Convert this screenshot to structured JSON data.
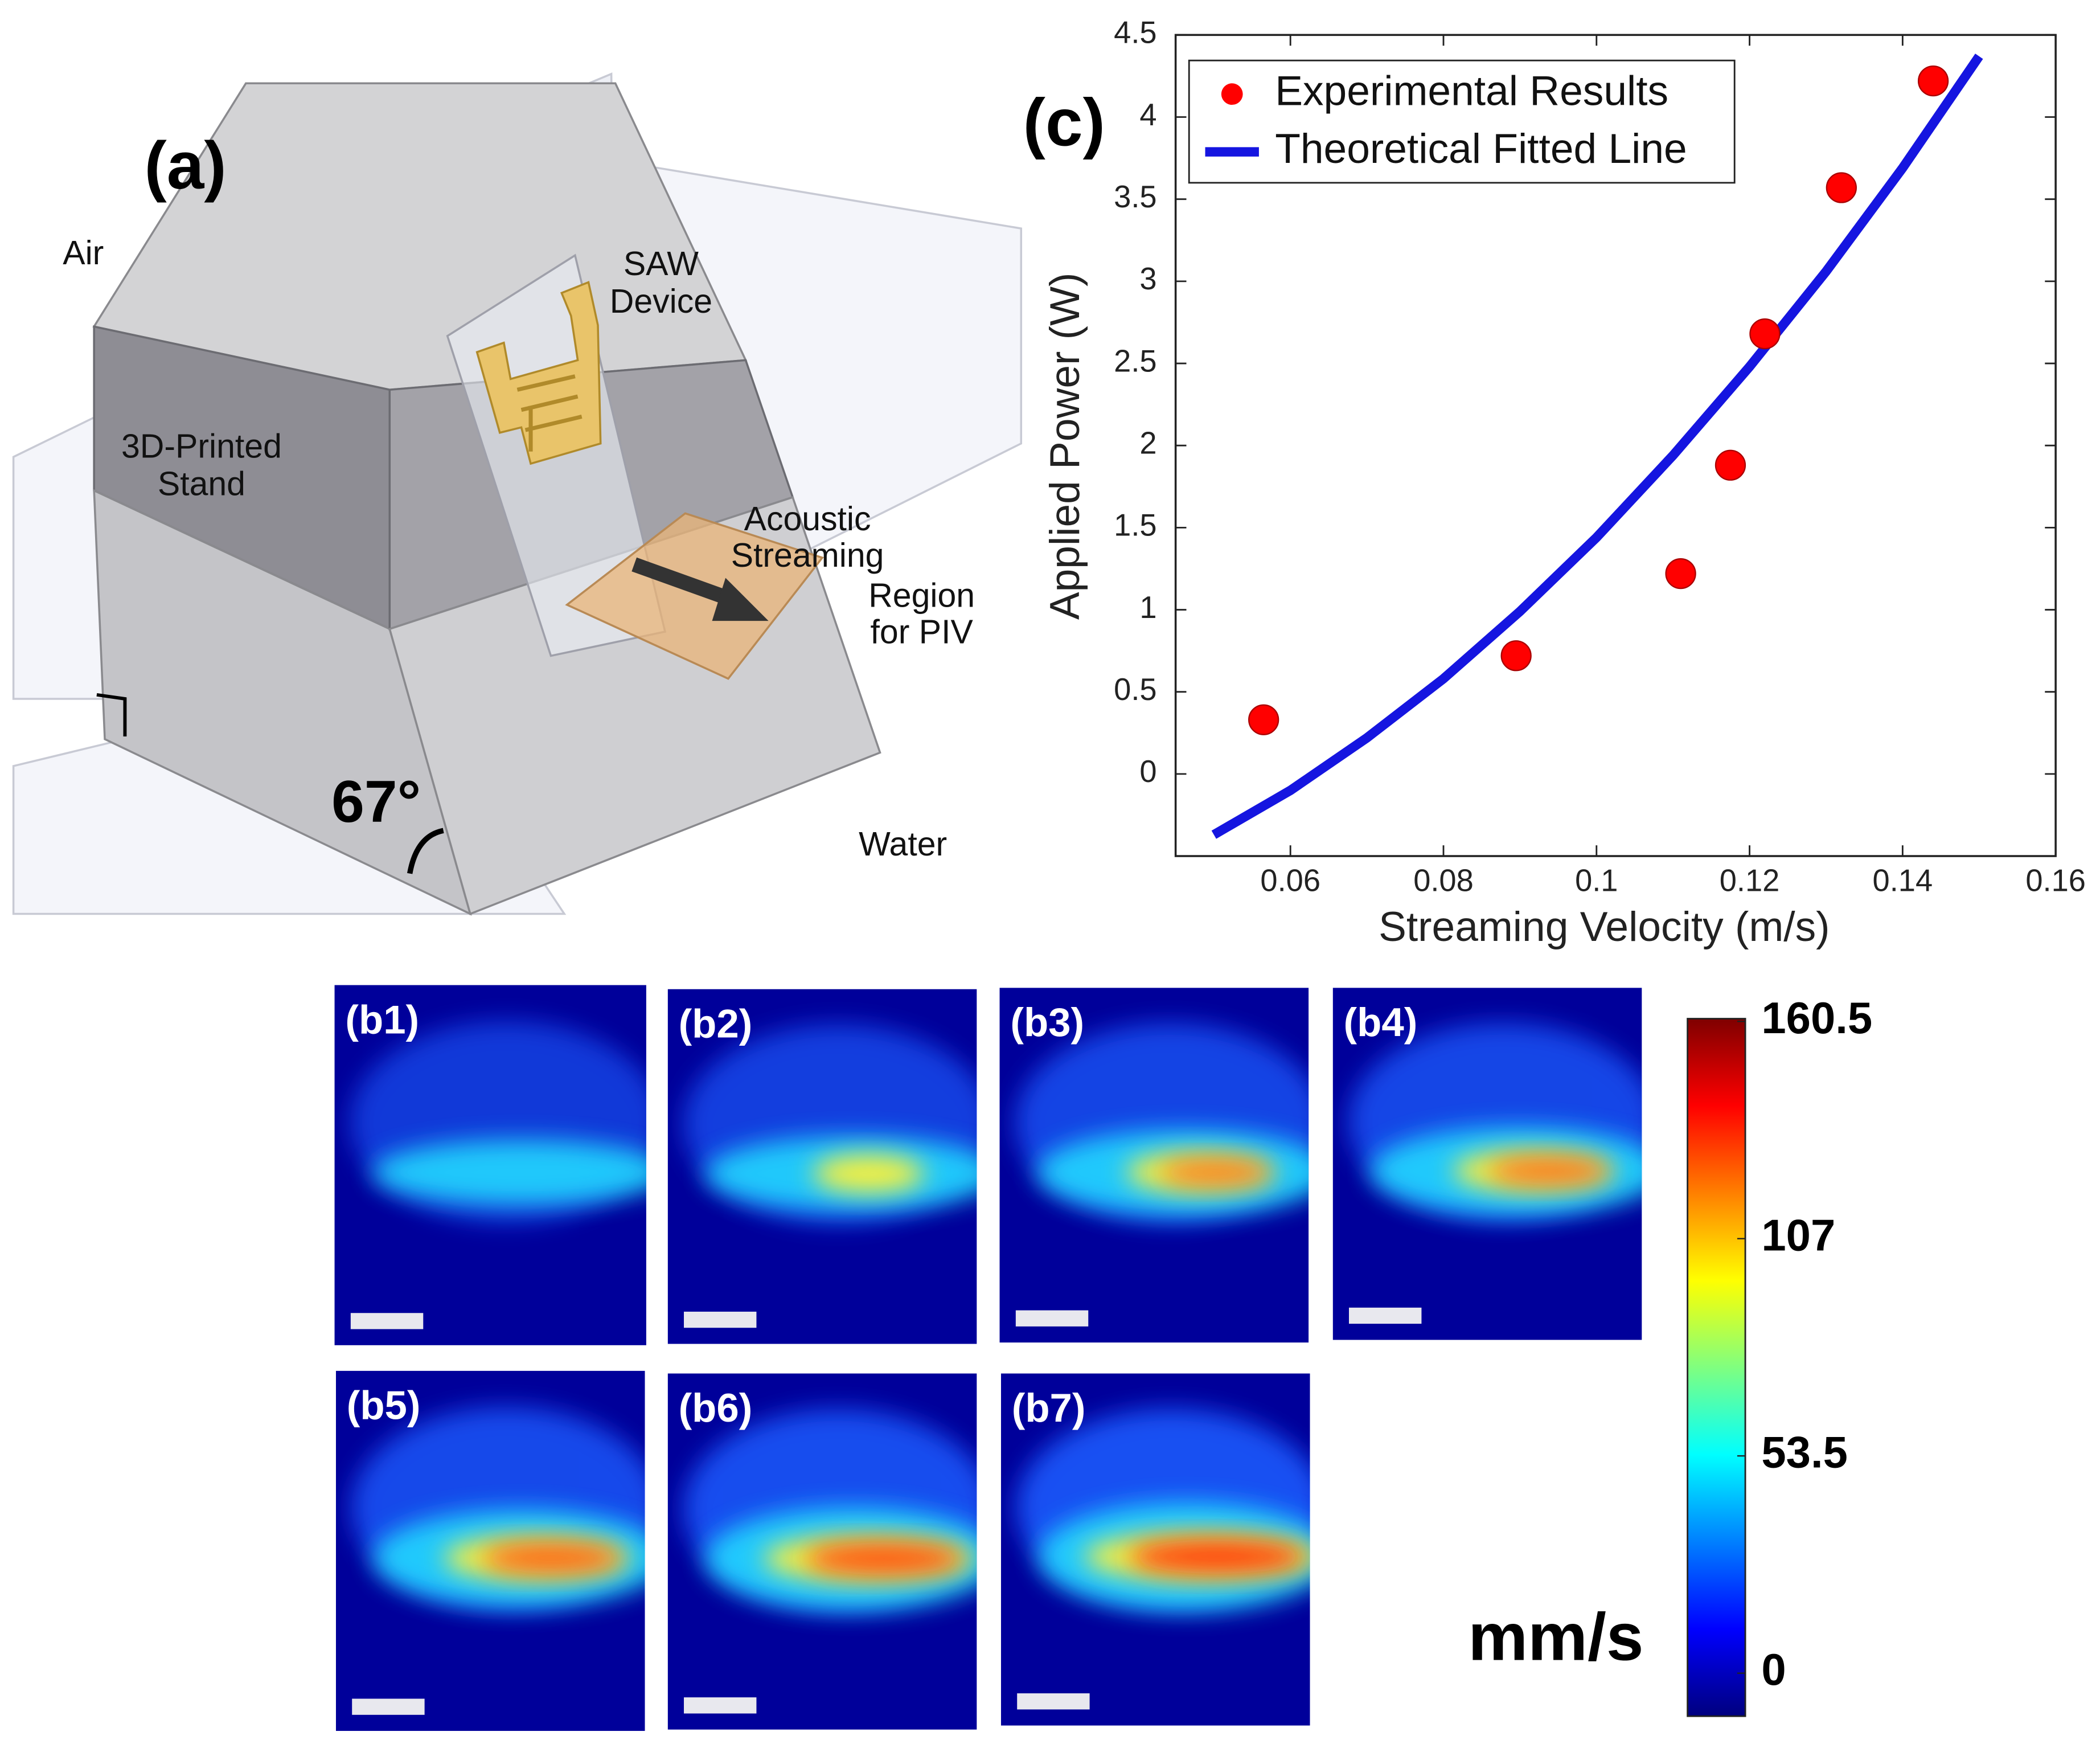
{
  "chart_data": {
    "type": "scatter",
    "panel_label": "(c)",
    "x_label": "Streaming Velocity (m/s)",
    "y_label": "Applied Power (W)",
    "xlim": [
      0.045,
      0.16
    ],
    "ylim": [
      -0.5,
      4.5
    ],
    "xticks": [
      0.06,
      0.08,
      0.1,
      0.12,
      0.14,
      0.16
    ],
    "yticks": [
      0,
      0.5,
      1,
      1.5,
      2,
      2.5,
      3,
      3.5,
      4,
      4.5
    ],
    "legend": "upper left",
    "series": [
      {
        "name": "Experimental Results",
        "color": "#ff0000",
        "marker": "circle",
        "x": [
          0.0565,
          0.0895,
          0.111,
          0.1175,
          0.122,
          0.132,
          0.144
        ],
        "values": [
          0.33,
          0.72,
          1.22,
          1.88,
          2.68,
          3.57,
          4.22
        ]
      },
      {
        "name": "Theoretical Fitted Line",
        "color": "#1515e0",
        "marker": "line",
        "x": [
          0.05,
          0.06,
          0.07,
          0.08,
          0.09,
          0.1,
          0.11,
          0.12,
          0.13,
          0.14,
          0.15
        ],
        "values": [
          -0.37,
          -0.1,
          0.22,
          0.58,
          0.99,
          1.44,
          1.94,
          2.48,
          3.06,
          3.69,
          4.37
        ]
      }
    ]
  },
  "diagram": {
    "panel_label": "(a)",
    "air": "Air",
    "water": "Water",
    "saw": [
      "SAW",
      "Device"
    ],
    "stand": [
      "3D-Printed",
      "Stand"
    ],
    "region": [
      "Acoustic",
      "Streaming",
      "Region",
      "for PIV"
    ],
    "angle": "67°"
  },
  "panels": [
    "(b1)",
    "(b2)",
    "(b3)",
    "(b4)",
    "(b5)",
    "(b6)",
    "(b7)"
  ],
  "colorbar": {
    "lim": [
      0,
      160.5
    ],
    "ticks": [
      0,
      53.5,
      107,
      160.5
    ],
    "unit": "mm/s"
  }
}
